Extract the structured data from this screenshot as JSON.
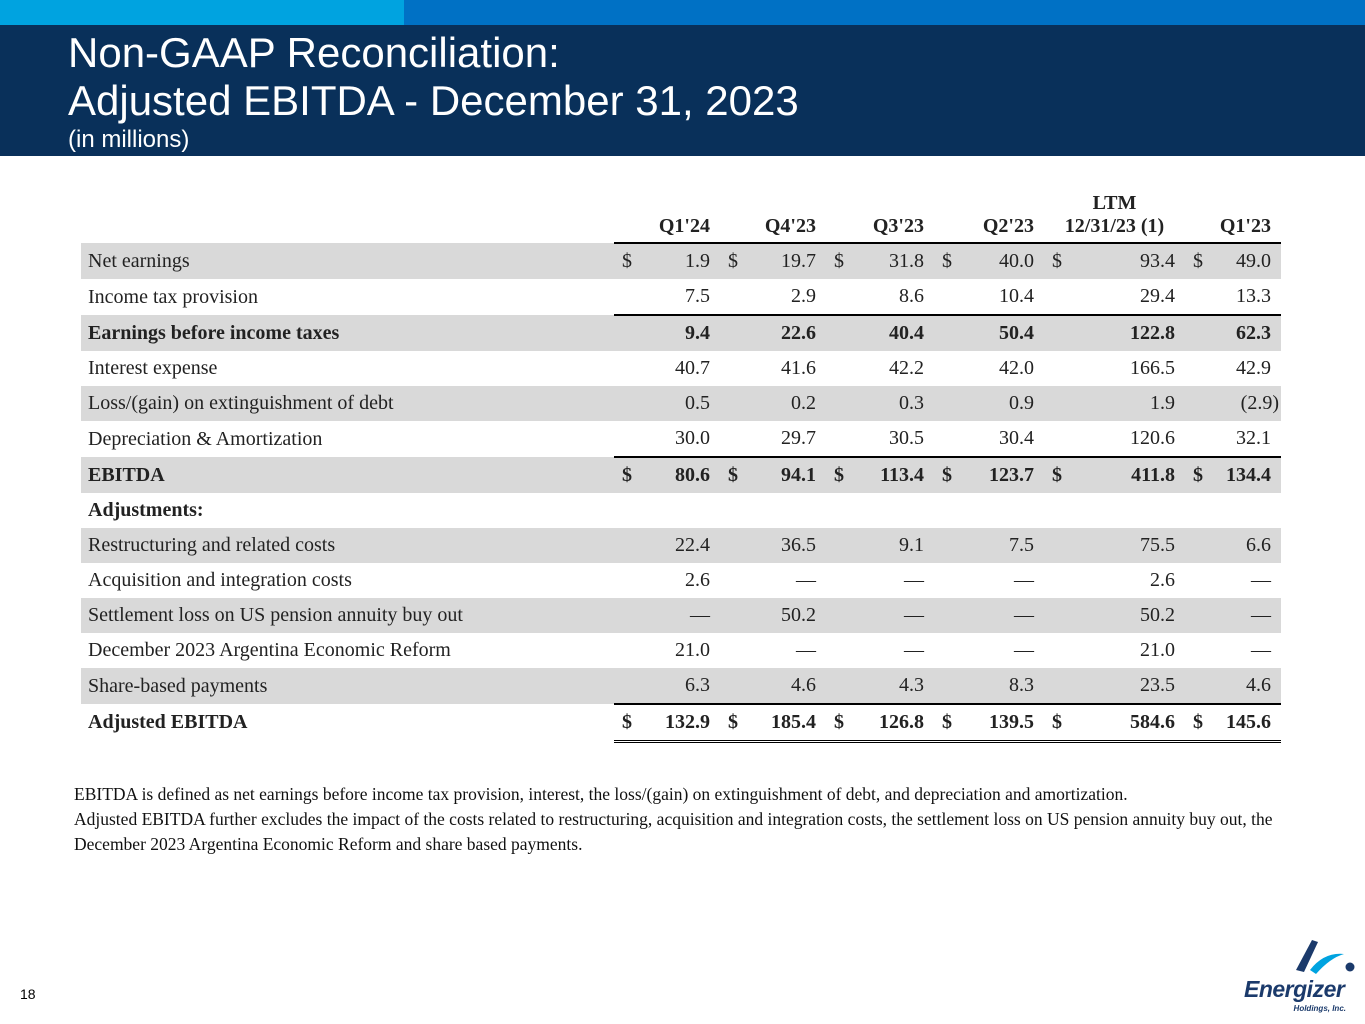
{
  "header": {
    "title_line1": "Non-GAAP Reconciliation:",
    "title_line2": "Adjusted EBITDA - December 31, 2023",
    "subtitle": "(in millions)"
  },
  "table": {
    "columns": [
      {
        "line1": "",
        "line2": "Q1'24"
      },
      {
        "line1": "",
        "line2": "Q4'23"
      },
      {
        "line1": "",
        "line2": "Q3'23"
      },
      {
        "line1": "",
        "line2": "Q2'23"
      },
      {
        "line1": "LTM",
        "line2": "12/31/23 (1)"
      },
      {
        "line1": "",
        "line2": "Q1'23"
      }
    ],
    "rows": [
      {
        "label": "Net earnings",
        "shade": true,
        "bold": false,
        "topline": false,
        "dbl": false,
        "sym": [
          "$",
          "$",
          "$",
          "$",
          "$",
          "$"
        ],
        "values": [
          "1.9",
          "19.7",
          "31.8",
          "40.0",
          "93.4",
          "49.0"
        ]
      },
      {
        "label": "Income tax provision",
        "shade": false,
        "bold": false,
        "topline": false,
        "dbl": false,
        "sym": [
          "",
          "",
          "",
          "",
          "",
          ""
        ],
        "values": [
          "7.5",
          "2.9",
          "8.6",
          "10.4",
          "29.4",
          "13.3"
        ]
      },
      {
        "label": "Earnings before income taxes",
        "shade": true,
        "bold": true,
        "topline": true,
        "dbl": false,
        "sym": [
          "",
          "",
          "",
          "",
          "",
          ""
        ],
        "values": [
          "9.4",
          "22.6",
          "40.4",
          "50.4",
          "122.8",
          "62.3"
        ]
      },
      {
        "label": "Interest expense",
        "shade": false,
        "bold": false,
        "topline": false,
        "dbl": false,
        "sym": [
          "",
          "",
          "",
          "",
          "",
          ""
        ],
        "values": [
          "40.7",
          "41.6",
          "42.2",
          "42.0",
          "166.5",
          "42.9"
        ]
      },
      {
        "label": "Loss/(gain) on extinguishment of debt",
        "shade": true,
        "bold": false,
        "topline": false,
        "dbl": false,
        "sym": [
          "",
          "",
          "",
          "",
          "",
          ""
        ],
        "values": [
          "0.5",
          "0.2",
          "0.3",
          "0.9",
          "1.9",
          "(2.9)"
        ]
      },
      {
        "label": "Depreciation & Amortization",
        "shade": false,
        "bold": false,
        "topline": false,
        "dbl": false,
        "sym": [
          "",
          "",
          "",
          "",
          "",
          ""
        ],
        "values": [
          "30.0",
          "29.7",
          "30.5",
          "30.4",
          "120.6",
          "32.1"
        ]
      },
      {
        "label": "EBITDA",
        "shade": true,
        "bold": true,
        "topline": true,
        "dbl": false,
        "sym": [
          "$",
          "$",
          "$",
          "$",
          "$",
          "$"
        ],
        "values": [
          "80.6",
          "94.1",
          "113.4",
          "123.7",
          "411.8",
          "134.4"
        ]
      },
      {
        "label": "Adjustments:",
        "shade": false,
        "bold": true,
        "topline": false,
        "dbl": false,
        "sym": [
          "",
          "",
          "",
          "",
          "",
          ""
        ],
        "values": [
          "",
          "",
          "",
          "",
          "",
          ""
        ]
      },
      {
        "label": "Restructuring and related costs",
        "shade": true,
        "bold": false,
        "topline": false,
        "dbl": false,
        "sym": [
          "",
          "",
          "",
          "",
          "",
          ""
        ],
        "values": [
          "22.4",
          "36.5",
          "9.1",
          "7.5",
          "75.5",
          "6.6"
        ]
      },
      {
        "label": "Acquisition and integration costs",
        "shade": false,
        "bold": false,
        "topline": false,
        "dbl": false,
        "sym": [
          "",
          "",
          "",
          "",
          "",
          ""
        ],
        "values": [
          "2.6",
          "—",
          "—",
          "—",
          "2.6",
          "—"
        ]
      },
      {
        "label": "Settlement loss on US pension annuity buy out",
        "shade": true,
        "bold": false,
        "topline": false,
        "dbl": false,
        "sym": [
          "",
          "",
          "",
          "",
          "",
          ""
        ],
        "values": [
          "—",
          "50.2",
          "—",
          "—",
          "50.2",
          "—"
        ]
      },
      {
        "label": "December 2023 Argentina Economic Reform",
        "shade": false,
        "bold": false,
        "topline": false,
        "dbl": false,
        "sym": [
          "",
          "",
          "",
          "",
          "",
          ""
        ],
        "values": [
          "21.0",
          "—",
          "—",
          "—",
          "21.0",
          "—"
        ]
      },
      {
        "label": "Share-based payments",
        "shade": true,
        "bold": false,
        "topline": false,
        "dbl": false,
        "sym": [
          "",
          "",
          "",
          "",
          "",
          ""
        ],
        "values": [
          "6.3",
          "4.6",
          "4.3",
          "8.3",
          "23.5",
          "4.6"
        ]
      },
      {
        "label": "Adjusted EBITDA",
        "shade": false,
        "bold": true,
        "topline": true,
        "dbl": true,
        "sym": [
          "$",
          "$",
          "$",
          "$",
          "$",
          "$"
        ],
        "values": [
          "132.9",
          "185.4",
          "126.8",
          "139.5",
          "584.6",
          "145.6"
        ]
      }
    ]
  },
  "footnote": {
    "line1": "EBITDA is defined as net earnings before income tax provision, interest, the loss/(gain) on extinguishment of debt, and depreciation and amortization.",
    "line2": "Adjusted EBITDA further excludes the impact of the costs related to restructuring, acquisition and integration costs, the settlement loss on US pension annuity buy out, the December 2023 Argentina Economic Reform and share based payments."
  },
  "page_number": "18",
  "logo": {
    "word": "Energizer",
    "sub": "Holdings, Inc.",
    "colors": {
      "dark": "#1b3a6b",
      "light": "#00a3e0"
    }
  },
  "colors": {
    "header_bg": "#09305a",
    "top_bar_light": "#00a3e0",
    "top_bar_mid": "#0071c5",
    "row_shade": "#d9d9d9"
  }
}
